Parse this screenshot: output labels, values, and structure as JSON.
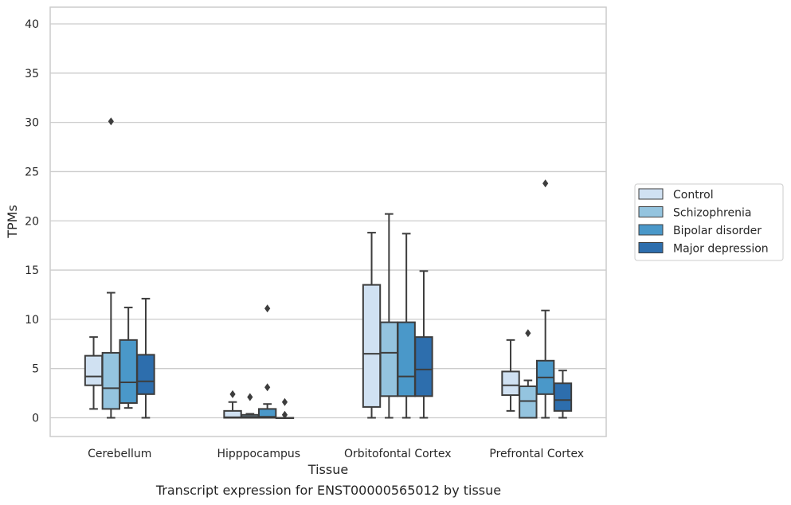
{
  "caption": "Transcript expression for ENST00000565012 by tissue",
  "chart_data": {
    "type": "boxplot",
    "title": "",
    "xlabel": "Tissue",
    "ylabel": "TPMs",
    "ylim": [
      -1.9,
      41.7
    ],
    "yticks": [
      0,
      5,
      10,
      15,
      20,
      25,
      30,
      35,
      40
    ],
    "grid": "horizontal",
    "legend_placement": "right",
    "categories": [
      "Cerebellum",
      "Hipppocampus",
      "Orbitofontal Cortex",
      "Prefrontal Cortex"
    ],
    "series": [
      {
        "name": "Control",
        "color": "#d0e1f2",
        "boxes": [
          {
            "whislo": 0.9,
            "q1": 3.3,
            "med": 4.2,
            "q3": 6.3,
            "whishi": 8.2,
            "fliers": []
          },
          {
            "whislo": 0.0,
            "q1": 0.0,
            "med": 0.05,
            "q3": 0.7,
            "whishi": 1.6,
            "fliers": [
              2.4
            ]
          },
          {
            "whislo": 0.0,
            "q1": 1.1,
            "med": 6.5,
            "q3": 13.5,
            "whishi": 18.8,
            "fliers": []
          },
          {
            "whislo": 0.7,
            "q1": 2.3,
            "med": 3.3,
            "q3": 4.7,
            "whishi": 7.9,
            "fliers": []
          }
        ]
      },
      {
        "name": "Schizophrenia",
        "color": "#94c4df",
        "boxes": [
          {
            "whislo": 0.0,
            "q1": 0.9,
            "med": 3.0,
            "q3": 6.6,
            "whishi": 12.7,
            "fliers": [
              30.1
            ]
          },
          {
            "whislo": 0.0,
            "q1": 0.0,
            "med": 0.1,
            "q3": 0.3,
            "whishi": 0.4,
            "fliers": [
              2.1
            ]
          },
          {
            "whislo": 0.0,
            "q1": 2.2,
            "med": 6.6,
            "q3": 9.7,
            "whishi": 20.7,
            "fliers": []
          },
          {
            "whislo": 0.0,
            "q1": 0.0,
            "med": 1.7,
            "q3": 3.2,
            "whishi": 3.8,
            "fliers": [
              8.6
            ]
          }
        ]
      },
      {
        "name": "Bipolar disorder",
        "color": "#4a98c9",
        "boxes": [
          {
            "whislo": 1.0,
            "q1": 1.5,
            "med": 3.6,
            "q3": 7.9,
            "whishi": 11.2,
            "fliers": []
          },
          {
            "whislo": 0.0,
            "q1": 0.0,
            "med": 0.1,
            "q3": 0.9,
            "whishi": 1.4,
            "fliers": [
              11.1,
              3.1
            ]
          },
          {
            "whislo": 0.0,
            "q1": 2.2,
            "med": 4.2,
            "q3": 9.7,
            "whishi": 18.7,
            "fliers": []
          },
          {
            "whislo": 0.0,
            "q1": 2.4,
            "med": 4.1,
            "q3": 5.8,
            "whishi": 10.9,
            "fliers": [
              23.8
            ]
          }
        ]
      },
      {
        "name": "Major depression",
        "color": "#2d6ead",
        "boxes": [
          {
            "whislo": 0.0,
            "q1": 2.4,
            "med": 3.7,
            "q3": 6.4,
            "whishi": 12.1,
            "fliers": []
          },
          {
            "whislo": 0.0,
            "q1": 0.0,
            "med": 0.0,
            "q3": 0.0,
            "whishi": 0.0,
            "fliers": [
              1.6,
              0.3
            ]
          },
          {
            "whislo": 0.0,
            "q1": 2.2,
            "med": 4.9,
            "q3": 8.2,
            "whishi": 14.9,
            "fliers": []
          },
          {
            "whislo": 0.0,
            "q1": 0.7,
            "med": 1.8,
            "q3": 3.5,
            "whishi": 4.8,
            "fliers": []
          }
        ]
      }
    ]
  }
}
